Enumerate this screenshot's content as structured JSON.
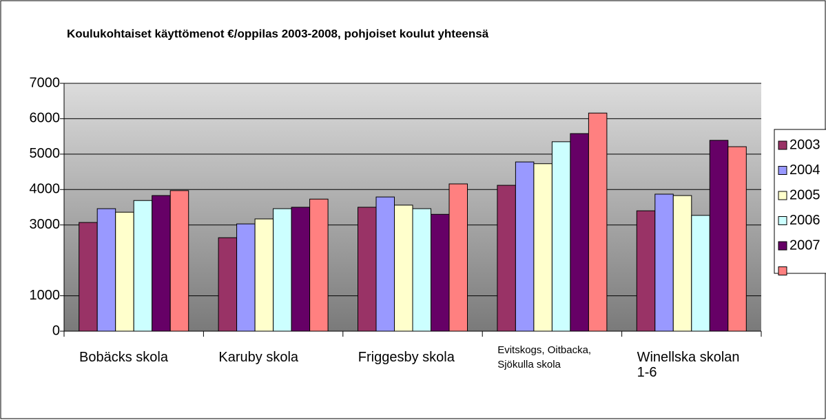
{
  "chart_data": {
    "type": "bar",
    "title": "Koulukohtaiset käyttömenot €/oppilas 2003-2008, pohjoiset koulut yhteensä",
    "categories": [
      "Bobäcks skola",
      "Karuby skola",
      "Friggesby skola",
      "Evitskogs, Oitbacka, Sjökulla skola",
      "Winellska skolan 1-6"
    ],
    "series": [
      {
        "name": "2003",
        "color": "#993366",
        "values": [
          3070,
          2640,
          3500,
          4120,
          3400
        ]
      },
      {
        "name": "2004",
        "color": "#9999ff",
        "values": [
          3460,
          3030,
          3790,
          4780,
          3870
        ]
      },
      {
        "name": "2005",
        "color": "#ffffcc",
        "values": [
          3360,
          3170,
          3560,
          4730,
          3830
        ]
      },
      {
        "name": "2006",
        "color": "#ccffff",
        "values": [
          3690,
          3460,
          3460,
          5350,
          3270
        ]
      },
      {
        "name": "2007",
        "color": "#660066",
        "values": [
          3830,
          3500,
          3300,
          5580,
          5390
        ]
      },
      {
        "name": null,
        "color": "#ff8080",
        "values": [
          3970,
          3730,
          4160,
          6160,
          5210
        ]
      }
    ],
    "ylim": [
      0,
      7000
    ],
    "yticks": [
      0,
      1000,
      3000,
      4000,
      5000,
      6000,
      7000
    ],
    "grid": true
  }
}
